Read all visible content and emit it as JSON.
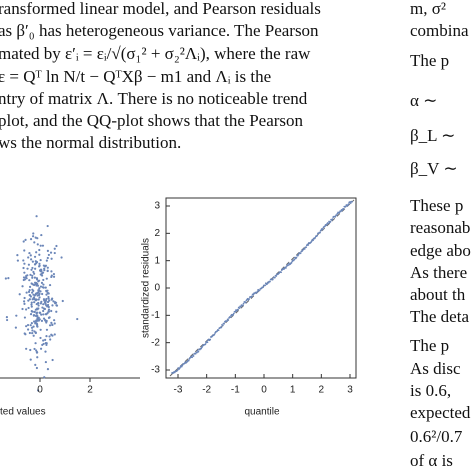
{
  "left_text": [
    "ransformed linear model, and Pearson residuals",
    "as β′₀ has heterogeneous variance. The Pearson",
    "mated by ε′ᵢ = εᵢ/√(σ₁² + σ₂²Λᵢ), where the raw",
    "ε = Qᵀ ln N/t − QᵀXβ − m1 and Λᵢ is the",
    "ntry of matrix Λ. There is no noticeable trend",
    "plot, and the QQ-plot shows that the Pearson",
    "ws the normal distribution."
  ],
  "right_text": [
    "m, σ²",
    "combina",
    "The p",
    "α ∼",
    "β_L ∼",
    "β_V ∼",
    "These p",
    "reasonab",
    "edge abo",
    "As there",
    "about th",
    "The deta",
    "The p",
    "As disc",
    "is 0.6,",
    "expected",
    "0.6²/0.7",
    "of α is"
  ],
  "left_figure": {
    "xticks": [
      "0",
      "2"
    ],
    "xlabel": "ted values"
  },
  "right_figure": {
    "yticks": [
      "3",
      "2",
      "1",
      "0",
      "-1",
      "-2",
      "-3"
    ],
    "xticks": [
      "-3",
      "-2",
      "-1",
      "0",
      "1",
      "2",
      "3"
    ],
    "ylabel": "standardized residuals",
    "xlabel": "quantile"
  }
}
